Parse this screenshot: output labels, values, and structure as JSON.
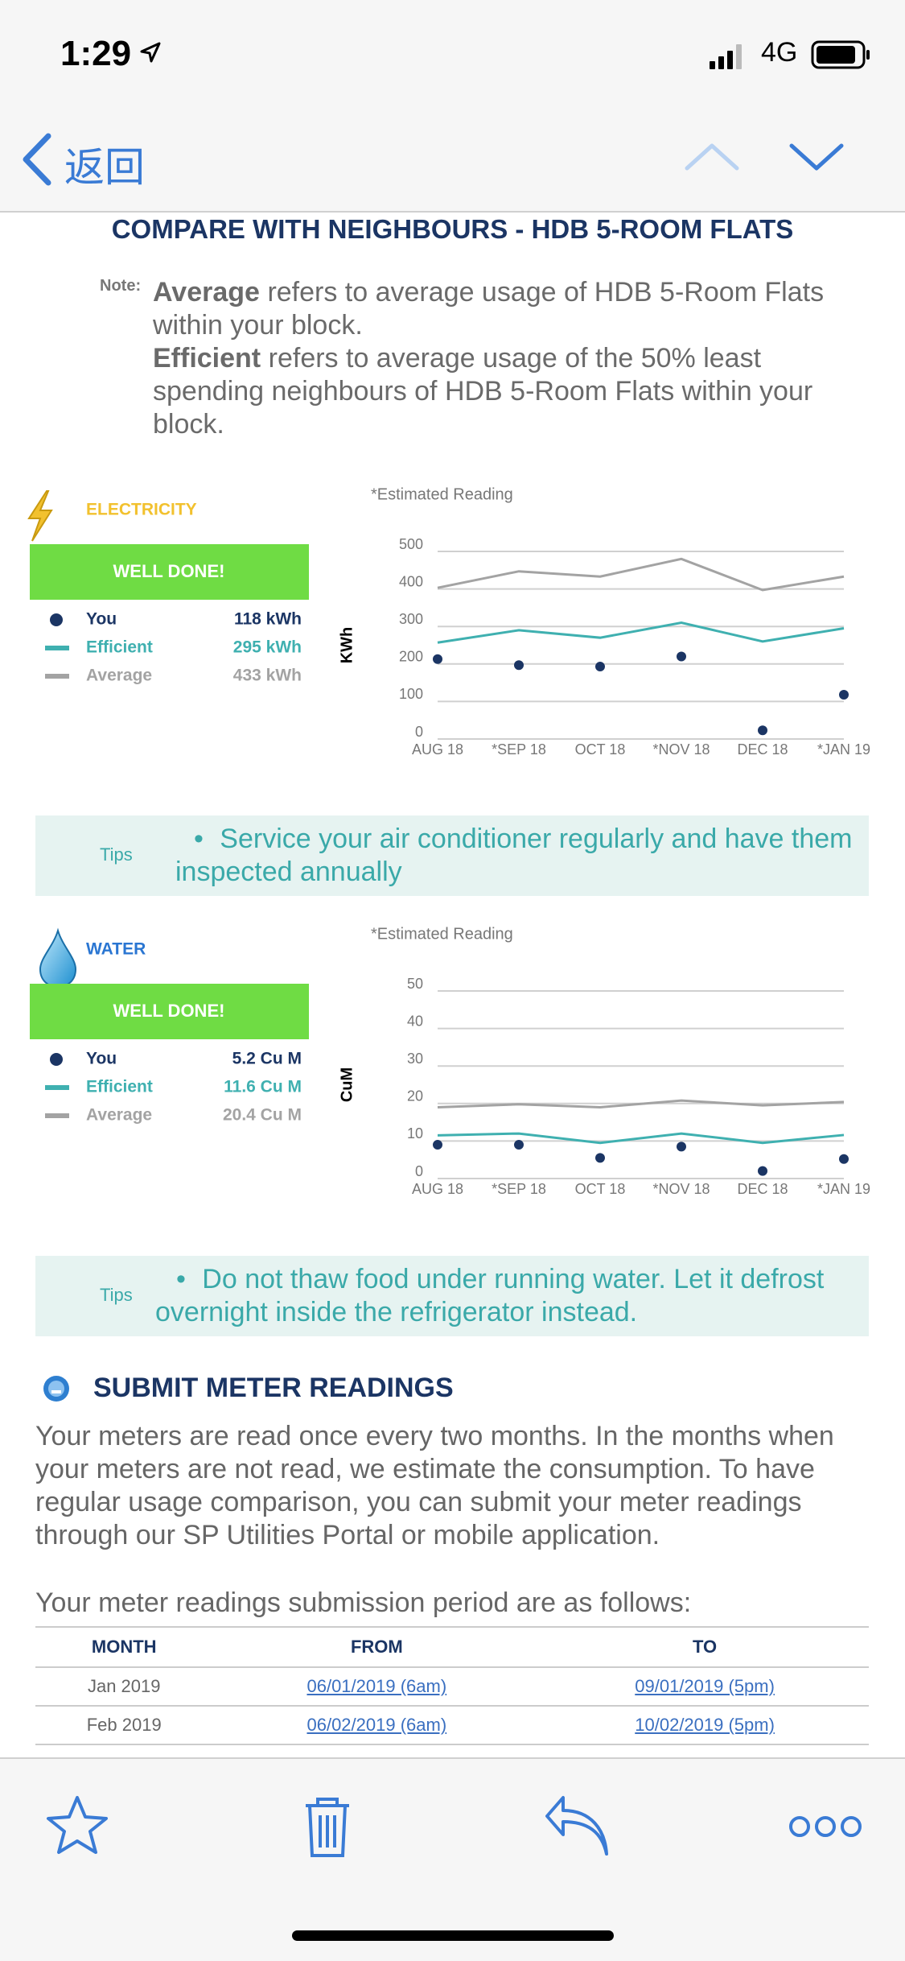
{
  "status_bar": {
    "time": "1:29",
    "network": "4G"
  },
  "nav": {
    "back": "返回"
  },
  "heading": "COMPARE WITH NEIGHBOURS - HDB 5-ROOM FLATS",
  "note": {
    "label": "Note:",
    "items": [
      {
        "term": "Average",
        "text": "refers to average usage of HDB 5-Room Flats within your block."
      },
      {
        "term": "Efficient",
        "text": "refers to average usage of the 50% least spending neighbours of HDB 5-Room Flats within your block."
      }
    ]
  },
  "chart_data": [
    {
      "type": "line",
      "title": "ELECTRICITY",
      "title_color": "#f2c12e",
      "status": "WELL DONE!",
      "note": "*Estimated Reading",
      "ylabel": "KWh",
      "categories": [
        "AUG 18",
        "*SEP 18",
        "OCT 18",
        "*NOV 18",
        "DEC 18",
        "*JAN 19"
      ],
      "ylim": [
        0,
        500
      ],
      "yticks": [
        0,
        100,
        200,
        300,
        400,
        500
      ],
      "grid": true,
      "series": [
        {
          "name": "You",
          "color": "#1b3564",
          "mode": "markers",
          "values": [
            213,
            197,
            193,
            220,
            23,
            118
          ],
          "legend_label": "118 kWh"
        },
        {
          "name": "Efficient",
          "color": "#3fb0b0",
          "mode": "lines",
          "values": [
            257,
            290,
            270,
            310,
            260,
            295
          ],
          "legend_label": "295 kWh"
        },
        {
          "name": "Average",
          "color": "#a3a3a3",
          "mode": "lines",
          "values": [
            403,
            447,
            433,
            480,
            397,
            433
          ],
          "legend_label": "433 kWh"
        }
      ]
    },
    {
      "type": "line",
      "title": "WATER",
      "title_color": "#2a76d2",
      "status": "WELL DONE!",
      "note": "*Estimated Reading",
      "ylabel": "CuM",
      "categories": [
        "AUG 18",
        "*SEP 18",
        "OCT 18",
        "*NOV 18",
        "DEC 18",
        "*JAN 19"
      ],
      "ylim": [
        0,
        50
      ],
      "yticks": [
        0,
        10,
        20,
        30,
        40,
        50
      ],
      "grid": true,
      "series": [
        {
          "name": "You",
          "color": "#1b3564",
          "mode": "markers",
          "values": [
            9,
            9,
            5.5,
            8.5,
            2,
            5.2
          ],
          "legend_label": "5.2 Cu M"
        },
        {
          "name": "Efficient",
          "color": "#3fb0b0",
          "mode": "lines",
          "values": [
            11.5,
            12,
            9.5,
            12,
            9.5,
            11.6
          ],
          "legend_label": "11.6 Cu M"
        },
        {
          "name": "Average",
          "color": "#a3a3a3",
          "mode": "lines",
          "values": [
            19,
            19.8,
            19,
            20.8,
            19.5,
            20.4
          ],
          "legend_label": "20.4 Cu M"
        }
      ]
    }
  ],
  "tips": {
    "label": "Tips",
    "items": [
      "Service your air conditioner regularly and have them inspected annually",
      "Do not thaw food under running water. Let it defrost overnight inside the refrigerator instead."
    ]
  },
  "submit": {
    "title": "SUBMIT METER READINGS",
    "paragraphs": [
      "Your meters are read once every two months. In the months when your meters are not read, we estimate the consumption. To have regular usage comparison, you can submit your meter readings through our SP Utilities Portal or mobile application.",
      "Your meter readings submission period are as follows:"
    ]
  },
  "table": {
    "header": [
      "MONTH",
      "FROM",
      "TO"
    ],
    "rows": [
      [
        "Jan 2019",
        "06/01/2019 (6am)",
        "09/01/2019 (5pm)"
      ],
      [
        "Feb 2019",
        "06/02/2019 (6am)",
        "10/02/2019 (5pm)"
      ]
    ]
  }
}
